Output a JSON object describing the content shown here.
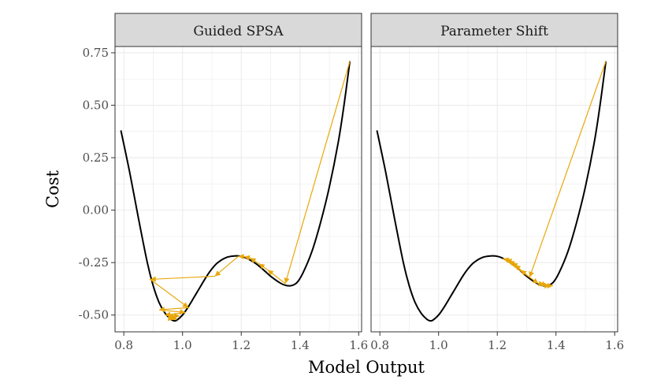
{
  "chart_data": {
    "type": "line",
    "xlabel": "Model Output",
    "ylabel": "Cost",
    "xlim": [
      0.77,
      1.61
    ],
    "ylim": [
      -0.58,
      0.78
    ],
    "x_ticks": [
      0.8,
      1.0,
      1.2,
      1.4,
      1.6
    ],
    "x_tick_labels": [
      "0.8",
      "1.0",
      "1.2",
      "1.4",
      "1.6"
    ],
    "y_ticks": [
      -0.5,
      -0.25,
      0.0,
      0.25,
      0.5,
      0.75
    ],
    "y_tick_labels": [
      "-0.50",
      "-0.25",
      "0.00",
      "0.25",
      "0.50",
      "0.75"
    ],
    "grid": true,
    "colors": {
      "curve": "#000000",
      "path": "#E8A70A",
      "strip": "#d9d9d9",
      "grid": "#ebebeb"
    },
    "cost_curve": {
      "x": [
        0.79,
        0.82,
        0.85,
        0.88,
        0.9,
        0.92,
        0.94,
        0.96,
        0.97,
        0.98,
        1.0,
        1.02,
        1.05,
        1.08,
        1.1,
        1.12,
        1.15,
        1.18,
        1.2,
        1.22,
        1.25,
        1.28,
        1.3,
        1.33,
        1.35,
        1.37,
        1.39,
        1.41,
        1.44,
        1.47,
        1.5,
        1.53,
        1.55,
        1.57
      ],
      "y": [
        0.38,
        0.18,
        -0.04,
        -0.25,
        -0.36,
        -0.44,
        -0.49,
        -0.52,
        -0.527,
        -0.525,
        -0.5,
        -0.46,
        -0.39,
        -0.32,
        -0.28,
        -0.25,
        -0.225,
        -0.218,
        -0.22,
        -0.23,
        -0.255,
        -0.29,
        -0.315,
        -0.345,
        -0.358,
        -0.36,
        -0.345,
        -0.3,
        -0.2,
        -0.06,
        0.11,
        0.32,
        0.5,
        0.71
      ]
    },
    "panels": [
      {
        "strip": "Guided SPSA",
        "path": {
          "x": [
            1.57,
            1.35,
            1.29,
            1.26,
            1.23,
            1.21,
            1.19,
            1.11,
            0.89,
            1.02,
            0.92,
            1.01,
            0.94,
            0.99,
            0.95,
            0.98,
            0.96,
            0.97
          ],
          "y": [
            0.71,
            -0.35,
            -0.285,
            -0.255,
            -0.228,
            -0.222,
            -0.22,
            -0.315,
            -0.33,
            -0.465,
            -0.475,
            -0.488,
            -0.5,
            -0.505,
            -0.51,
            -0.512,
            -0.518,
            -0.522
          ]
        }
      },
      {
        "strip": "Parameter Shift",
        "path": {
          "x": [
            1.57,
            1.31,
            1.28,
            1.26,
            1.25,
            1.24,
            1.23,
            1.22,
            1.34,
            1.36,
            1.37,
            1.38,
            1.39
          ],
          "y": [
            0.71,
            -0.32,
            -0.285,
            -0.26,
            -0.25,
            -0.24,
            -0.235,
            -0.23,
            -0.35,
            -0.355,
            -0.36,
            -0.36,
            -0.36
          ]
        }
      }
    ]
  }
}
